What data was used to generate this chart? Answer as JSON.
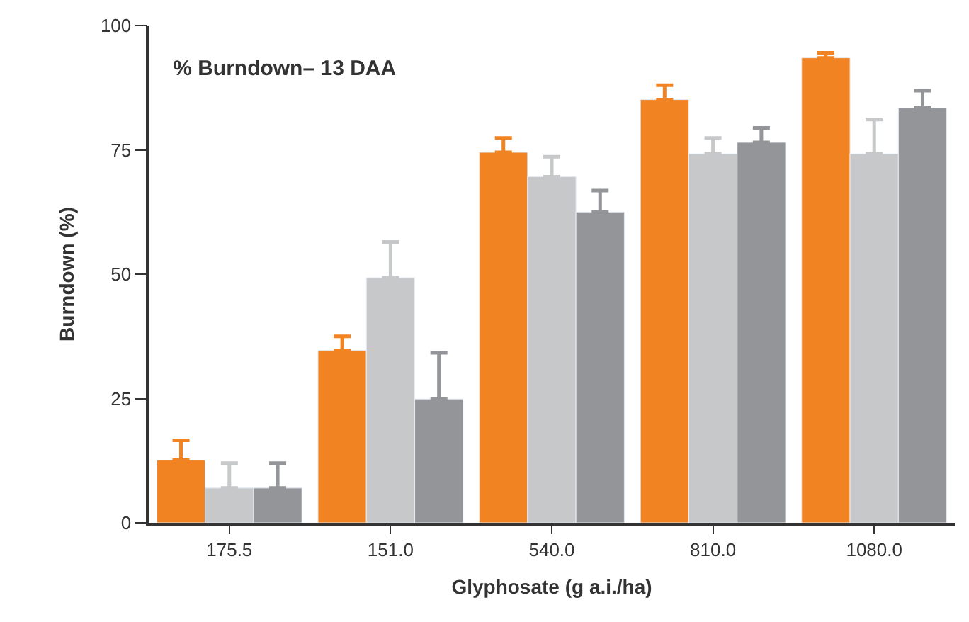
{
  "chart_data": {
    "type": "bar",
    "title": "% Burndown– 13 DAA",
    "xlabel": "Glyphosate (g a.i./ha)",
    "ylabel": "Burndown (%)",
    "categories": [
      "175.5",
      "151.0",
      "540.0",
      "810.0",
      "1080.0"
    ],
    "series": [
      {
        "color": "#f28322",
        "values": [
          12.6,
          34.7,
          74.5,
          85.1,
          93.5
        ],
        "errors": [
          [
            12.6,
            16.6
          ],
          [
            34.7,
            37.5
          ],
          [
            74.5,
            77.4
          ],
          [
            85.1,
            88.0
          ],
          [
            93.5,
            94.5
          ]
        ]
      },
      {
        "color": "#c7c8ca",
        "values": [
          7,
          49.3,
          69.6,
          74.2,
          74.2
        ],
        "errors": [
          [
            7,
            12
          ],
          [
            49.3,
            56.5
          ],
          [
            69.6,
            73.6
          ],
          [
            74.2,
            77.4
          ],
          [
            74.2,
            81.1
          ]
        ]
      },
      {
        "color": "#939598",
        "values": [
          7,
          24.9,
          62.5,
          76.5,
          83.4
        ],
        "errors": [
          [
            7,
            12
          ],
          [
            24.9,
            34.2
          ],
          [
            62.5,
            66.8
          ],
          [
            76.5,
            79.4
          ],
          [
            83.4,
            86.9
          ]
        ]
      }
    ],
    "ylim": [
      0,
      100
    ],
    "yticks": [
      0,
      25,
      50,
      75,
      100
    ]
  }
}
